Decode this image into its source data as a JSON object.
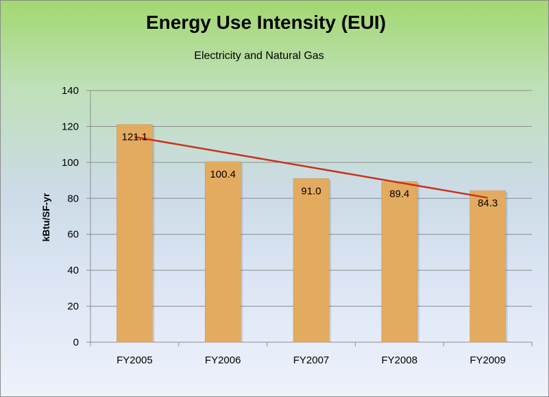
{
  "chart_data": {
    "type": "bar",
    "title": "Energy Use Intensity (EUI)",
    "subtitle": "Electricity and Natural Gas",
    "xlabel": "",
    "ylabel": "kBtu/SF-yr",
    "ylim": [
      0,
      140
    ],
    "yticks": [
      0,
      20,
      40,
      60,
      80,
      100,
      120,
      140
    ],
    "categories": [
      "FY2005",
      "FY2006",
      "FY2007",
      "FY2008",
      "FY2009"
    ],
    "values": [
      121.1,
      100.4,
      91.0,
      89.4,
      84.3
    ],
    "value_labels": [
      "121.1",
      "100.4",
      "91.0",
      "89.4",
      "84.3"
    ],
    "trendline": {
      "type": "linear",
      "color": "#c8321c"
    },
    "grid": true,
    "legend": "none",
    "colors": {
      "bar": "#e3ab60",
      "bar_edge": "#c99650",
      "grid": "#8c8c8c",
      "trend": "#c8321c"
    }
  }
}
